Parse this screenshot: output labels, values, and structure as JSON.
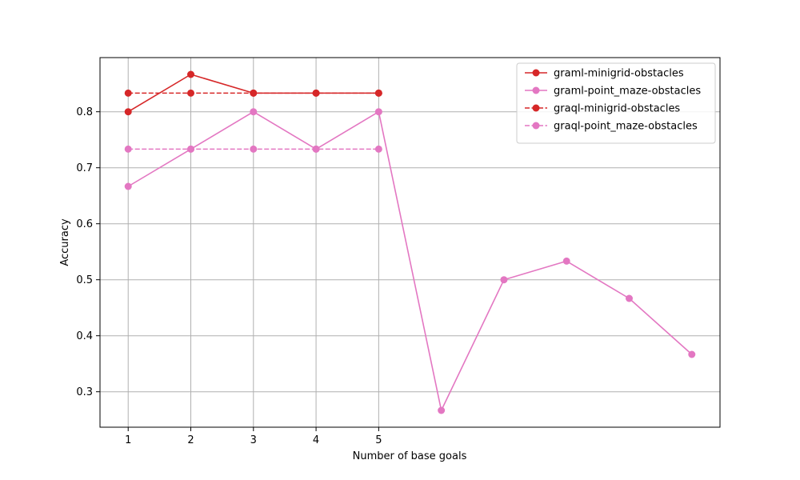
{
  "chart_data": {
    "type": "line",
    "title": "",
    "xlabel": "Number of base goals",
    "ylabel": "Accuracy",
    "xlim": [
      0.55,
      10.45
    ],
    "ylim": [
      0.2367,
      0.8967
    ],
    "xticks": [
      1,
      2,
      3,
      4,
      5
    ],
    "yticks": [
      0.3,
      0.4,
      0.5,
      0.6,
      0.7,
      0.8
    ],
    "grid": true,
    "legend_position": "top-right",
    "series": [
      {
        "name": "graml-minigrid-obstacles",
        "color": "#d62728",
        "style": "solid",
        "x": [
          1,
          2,
          3,
          4,
          5
        ],
        "y": [
          0.8,
          0.8667,
          0.8333,
          0.8333,
          0.8333
        ]
      },
      {
        "name": "graml-point_maze-obstacles",
        "color": "#e377c2",
        "style": "solid",
        "x": [
          1,
          2,
          3,
          4,
          5,
          6,
          7,
          8,
          9,
          10
        ],
        "y": [
          0.6667,
          0.7333,
          0.8,
          0.7333,
          0.8,
          0.2667,
          0.5,
          0.5333,
          0.4667,
          0.3667
        ]
      },
      {
        "name": "graql-minigrid-obstacles",
        "color": "#d62728",
        "style": "dashed",
        "x": [
          1,
          2,
          3,
          4,
          5
        ],
        "y": [
          0.8333,
          0.8333,
          0.8333,
          0.8333,
          0.8333
        ]
      },
      {
        "name": "graql-point_maze-obstacles",
        "color": "#e377c2",
        "style": "dashed",
        "x": [
          1,
          2,
          3,
          4,
          5
        ],
        "y": [
          0.7333,
          0.7333,
          0.7333,
          0.7333,
          0.7333
        ]
      }
    ]
  }
}
